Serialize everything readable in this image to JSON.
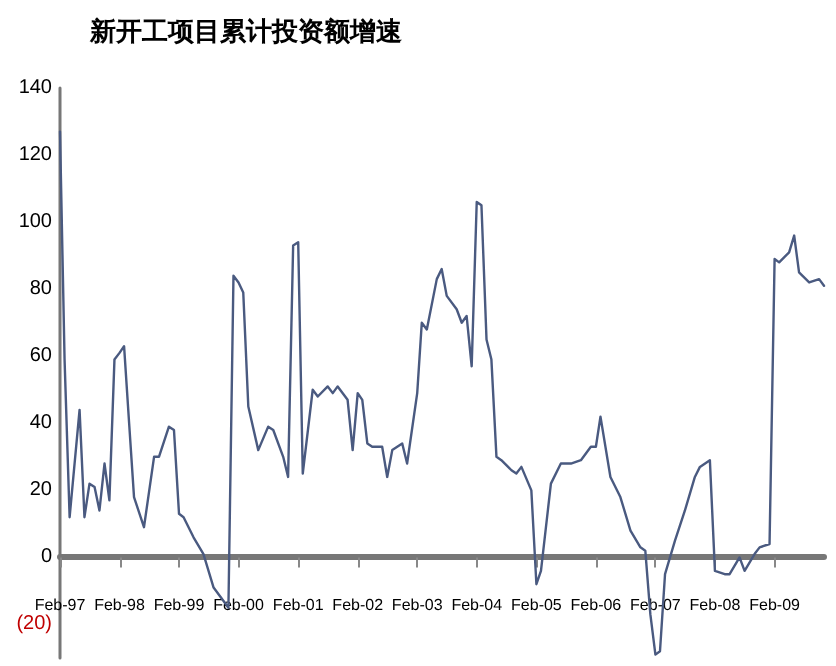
{
  "chart_data": {
    "type": "line",
    "title": "新开工项目累计投资额增速",
    "x": [
      "1997-02",
      "1997-03",
      "1997-04",
      "1997-06",
      "1997-07",
      "1997-08",
      "1997-09",
      "1997-10",
      "1997-11",
      "1997-12",
      "1998-01",
      "1998-02",
      "1998-03",
      "1998-04",
      "1998-05",
      "1998-07",
      "1998-09",
      "1998-10",
      "1998-12",
      "1999-01",
      "1999-02",
      "1999-03",
      "1999-05",
      "1999-07",
      "1999-09",
      "1999-11",
      "1999-12",
      "2000-01",
      "2000-02",
      "2000-03",
      "2000-04",
      "2000-06",
      "2000-08",
      "2000-09",
      "2000-11",
      "2000-12",
      "2001-01",
      "2001-02",
      "2001-03",
      "2001-05",
      "2001-06",
      "2001-08",
      "2001-09",
      "2001-10",
      "2001-12",
      "2002-01",
      "2002-02",
      "2002-03",
      "2002-04",
      "2002-05",
      "2002-07",
      "2002-08",
      "2002-09",
      "2002-11",
      "2002-12",
      "2003-02",
      "2003-03",
      "2003-04",
      "2003-06",
      "2003-07",
      "2003-08",
      "2003-10",
      "2003-11",
      "2003-12",
      "2004-01",
      "2004-02",
      "2004-03",
      "2004-04",
      "2004-05",
      "2004-06",
      "2004-07",
      "2004-09",
      "2004-10",
      "2004-11",
      "2005-01",
      "2005-02",
      "2005-03",
      "2005-05",
      "2005-07",
      "2005-09",
      "2005-11",
      "2006-01",
      "2006-02",
      "2006-03",
      "2006-05",
      "2006-07",
      "2006-09",
      "2006-11",
      "2006-12",
      "2007-01",
      "2007-02",
      "2007-03",
      "2007-04",
      "2007-06",
      "2007-08",
      "2007-10",
      "2007-11",
      "2008-01",
      "2008-02",
      "2008-04",
      "2008-05",
      "2008-07",
      "2008-08",
      "2008-10",
      "2008-11",
      "2009-01",
      "2009-02",
      "2009-03",
      "2009-05",
      "2009-06",
      "2009-07",
      "2009-09",
      "2009-11",
      "2009-12"
    ],
    "series": [
      {
        "color": "#4a5a80",
        "values": [
          127,
          59,
          12,
          44,
          12,
          22,
          21,
          14,
          28,
          17,
          59,
          61,
          63,
          40,
          18,
          9,
          30,
          30,
          39,
          38,
          13,
          12,
          6,
          1,
          -9,
          -13,
          -15,
          84,
          82,
          79,
          45,
          32,
          39,
          38,
          30,
          24,
          93,
          94,
          25,
          50,
          48,
          51,
          49,
          51,
          47,
          32,
          49,
          47,
          34,
          33,
          33,
          24,
          32,
          34,
          28,
          49,
          70,
          68,
          83,
          86,
          78,
          74,
          70,
          72,
          57,
          106,
          105,
          65,
          59,
          30,
          29,
          26,
          25,
          27,
          20,
          -8,
          -4,
          22,
          28,
          28,
          29,
          33,
          33,
          42,
          24,
          18,
          8,
          3,
          2,
          -17,
          -29,
          -28,
          -5,
          5,
          14,
          24,
          27,
          29,
          -4,
          -5,
          -5,
          0,
          -4,
          1,
          3,
          4,
          89,
          88,
          91,
          96,
          85,
          82,
          83,
          81
        ]
      }
    ],
    "xlim": [
      "1997-02",
      "2009-12"
    ],
    "xticks": [
      {
        "value": "1997-02",
        "label": "Feb-97"
      },
      {
        "value": "1998-02",
        "label": "Feb-98"
      },
      {
        "value": "1999-02",
        "label": "Feb-99"
      },
      {
        "value": "2000-02",
        "label": "Feb-00"
      },
      {
        "value": "2001-02",
        "label": "Feb-01"
      },
      {
        "value": "2002-02",
        "label": "Feb-02"
      },
      {
        "value": "2003-02",
        "label": "Feb-03"
      },
      {
        "value": "2004-02",
        "label": "Feb-04"
      },
      {
        "value": "2005-02",
        "label": "Feb-05"
      },
      {
        "value": "2006-02",
        "label": "Feb-06"
      },
      {
        "value": "2007-02",
        "label": "Feb-07"
      },
      {
        "value": "2008-02",
        "label": "Feb-08"
      },
      {
        "value": "2009-02",
        "label": "Feb-09"
      }
    ],
    "ylim": [
      -30,
      140
    ],
    "yticks": [
      {
        "value": -20,
        "label": "(20)"
      },
      0,
      20,
      40,
      60,
      80,
      100,
      120,
      140
    ],
    "marker": "none",
    "line_style": "solid"
  }
}
